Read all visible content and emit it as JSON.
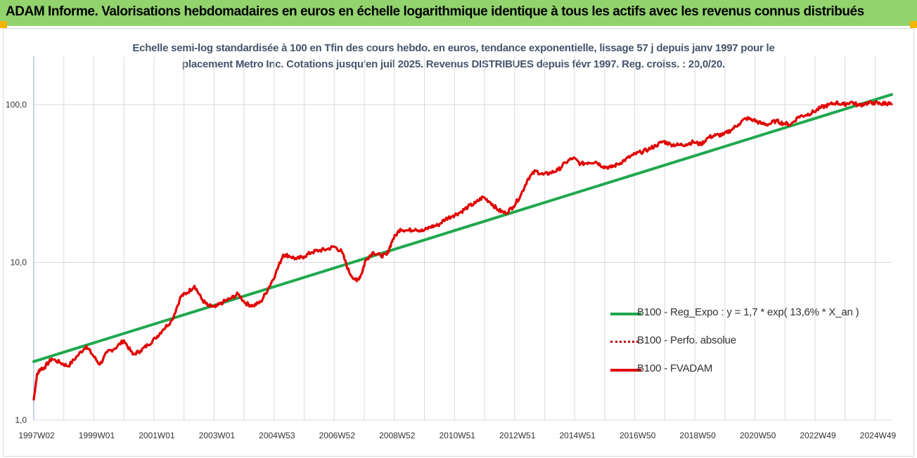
{
  "banner": {
    "title": "ADAM Informe. Valorisations hebdomadaires en euros en échelle logarithmique identique à tous les actifs avec les revenus connus distribués"
  },
  "colors": {
    "banner_bg": "#92d36e",
    "corner_accent": "#f5b400",
    "regression": "#1fa84f",
    "perfo": "#c00000",
    "fvadam": "#e00000",
    "title_text": "#44546a",
    "grid": "#d9d9d9"
  },
  "chart_data": {
    "type": "line",
    "title_line1": "Echelle semi-log standardisée à 100 en Tfin des cours hebdo. en euros, tendance exponentielle, lissage 57 j depuis janv 1997 pour le",
    "title_line2": "placement Metro Inc. Cotations jusqu'en juil 2025. Revenus DISTRIBUES depuis févr 1997. Reg. croiss. : 20,0/20.",
    "y_scale": "log",
    "ylim": [
      1,
      160
    ],
    "y_ticks": [
      1,
      10,
      100
    ],
    "y_tick_labels": [
      "1,0",
      "10,0",
      "100,0"
    ],
    "xlim": [
      1997.0,
      2025.55
    ],
    "x_tick_years": [
      1997.0,
      1999.0,
      2001.0,
      2003.0,
      2005.0,
      2007.0,
      2009.0,
      2011.0,
      2013.0,
      2015.0,
      2017.0,
      2019.0,
      2021.0,
      2023.0,
      2025.0
    ],
    "x_tick_labels": [
      "1997W02",
      "1999W01",
      "2001W01",
      "2003W01",
      "2004W53",
      "2006W52",
      "2008W52",
      "2010W51",
      "2012W51",
      "2014W51",
      "2016W50",
      "2018W50",
      "2020W50",
      "2022W49",
      "2024W49"
    ],
    "legend_position": "bottom-right",
    "series": [
      {
        "name": "B100 - Reg_Expo : y = 1,7 * exp( 13,6% *  X_an )",
        "style": "solid-thick",
        "x": [
          1997.0,
          2025.55
        ],
        "y": [
          2.35,
          116
        ]
      },
      {
        "name": "B100 - Perfo. absolue",
        "style": "dotted",
        "x": [],
        "y": []
      },
      {
        "name": "B100 - FVADAM",
        "style": "solid",
        "x": [
          1997.0,
          1997.1,
          1997.2,
          1997.35,
          1997.6,
          1997.9,
          1998.15,
          1998.45,
          1998.75,
          1998.95,
          1999.2,
          1999.45,
          1999.7,
          2000.0,
          2000.3,
          2000.55,
          2000.8,
          2001.05,
          2001.3,
          2001.6,
          2001.9,
          2002.1,
          2002.35,
          2002.6,
          2002.8,
          2003.05,
          2003.3,
          2003.55,
          2003.8,
          2004.05,
          2004.3,
          2004.55,
          2004.8,
          2005.05,
          2005.3,
          2005.5,
          2005.75,
          2006.0,
          2006.25,
          2006.5,
          2006.75,
          2007.0,
          2007.25,
          2007.5,
          2007.75,
          2007.9,
          2008.05,
          2008.3,
          2008.55,
          2008.75,
          2008.95,
          2009.2,
          2009.45,
          2009.7,
          2009.95,
          2010.2,
          2010.45,
          2010.7,
          2010.95,
          2011.2,
          2011.45,
          2011.7,
          2011.95,
          2012.2,
          2012.45,
          2012.7,
          2012.95,
          2013.2,
          2013.45,
          2013.7,
          2013.95,
          2014.2,
          2014.45,
          2014.7,
          2014.95,
          2015.2,
          2015.45,
          2015.7,
          2015.95,
          2016.2,
          2016.45,
          2016.7,
          2016.95,
          2017.2,
          2017.45,
          2017.7,
          2017.95,
          2018.2,
          2018.45,
          2018.7,
          2018.95,
          2019.2,
          2019.45,
          2019.7,
          2019.95,
          2020.2,
          2020.45,
          2020.7,
          2020.95,
          2021.2,
          2021.45,
          2021.7,
          2021.95,
          2022.2,
          2022.45,
          2022.7,
          2022.95,
          2023.2,
          2023.45,
          2023.7,
          2023.95,
          2024.2,
          2024.45,
          2024.7,
          2024.95,
          2025.2,
          2025.35,
          2025.55
        ],
        "y": [
          1.35,
          1.9,
          2.1,
          2.15,
          2.45,
          2.3,
          2.2,
          2.55,
          2.95,
          2.6,
          2.25,
          2.7,
          2.85,
          3.2,
          2.6,
          2.75,
          3.0,
          3.3,
          3.75,
          4.3,
          6.1,
          6.4,
          7.1,
          5.8,
          5.3,
          5.2,
          5.6,
          5.9,
          6.3,
          5.5,
          5.3,
          5.6,
          6.8,
          8.5,
          11.2,
          11.0,
          10.5,
          10.9,
          11.6,
          11.9,
          12.1,
          12.6,
          11.7,
          8.6,
          7.6,
          8.4,
          10.4,
          11.6,
          11.0,
          11.2,
          14.0,
          16.3,
          15.9,
          16.3,
          15.8,
          16.8,
          17.2,
          18.8,
          19.8,
          20.8,
          22.5,
          23.8,
          26.0,
          24.0,
          21.5,
          20.5,
          22.5,
          26.5,
          34.0,
          38.0,
          36.0,
          37.0,
          38.5,
          43.0,
          46.0,
          42.0,
          43.0,
          43.5,
          40.5,
          40.0,
          42.0,
          45.0,
          48.0,
          50.0,
          52.0,
          55.0,
          58.5,
          56.0,
          55.5,
          56.0,
          58.0,
          56.0,
          62.0,
          64.0,
          64.5,
          69.0,
          75.0,
          82.0,
          80.0,
          76.0,
          75.0,
          79.0,
          76.0,
          75.0,
          84.0,
          86.0,
          90.0,
          96.0,
          99.5,
          103.0,
          100.0,
          104.0,
          99.0,
          102.0,
          103.0,
          101.0,
          102.5,
          100.5
        ]
      }
    ]
  }
}
